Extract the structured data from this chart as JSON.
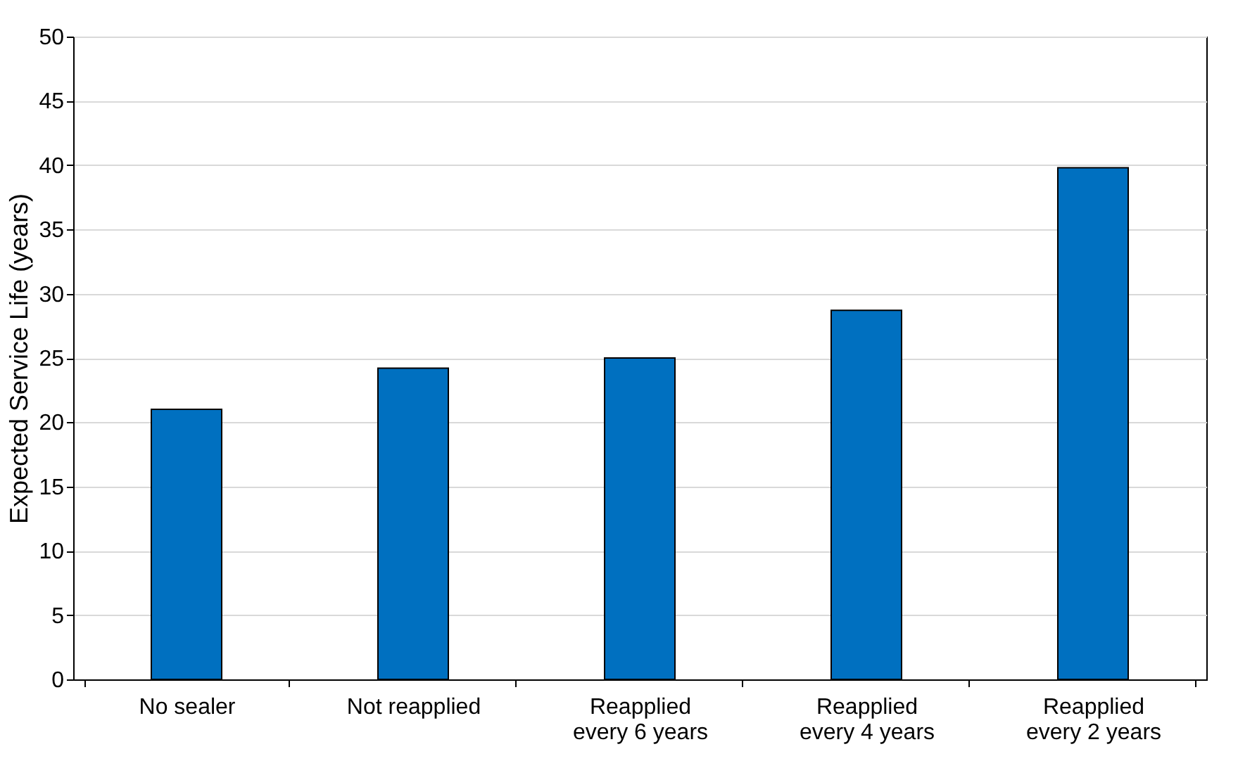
{
  "chart_data": {
    "type": "bar",
    "ylabel": "Expected Service Life (years)",
    "categories": [
      "No sealer",
      "Not reapplied",
      "Reapplied\nevery 6 years",
      "Reapplied\nevery 4 years",
      "Reapplied\nevery 2 years"
    ],
    "values": [
      21.0,
      24.2,
      25.0,
      28.7,
      39.8
    ],
    "color": "#0070c0",
    "ylim": [
      0,
      50
    ],
    "yticks": [
      0,
      5,
      10,
      15,
      20,
      25,
      30,
      35,
      40,
      45,
      50
    ],
    "grid": "y"
  }
}
